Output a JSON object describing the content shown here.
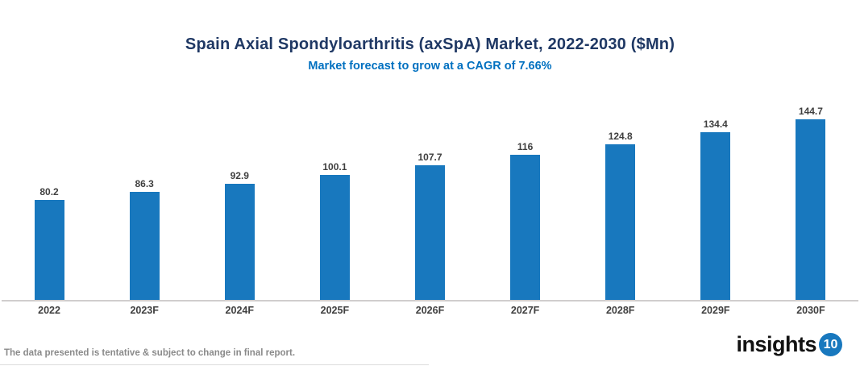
{
  "header": {
    "title": "Spain Axial Spondyloarthritis (axSpA) Market, 2022-2030 ($Mn)",
    "subtitle": "Market forecast to grow at a CAGR of 7.66%"
  },
  "chart_data": {
    "type": "bar",
    "title": "Spain Axial Spondyloarthritis (axSpA) Market, 2022-2030 ($Mn)",
    "subtitle": "Market forecast to grow at a CAGR of 7.66%",
    "categories": [
      "2022",
      "2023F",
      "2024F",
      "2025F",
      "2026F",
      "2027F",
      "2028F",
      "2029F",
      "2030F"
    ],
    "values": [
      80.2,
      86.3,
      92.9,
      100.1,
      107.7,
      116,
      124.8,
      134.4,
      144.7
    ],
    "xlabel": "",
    "ylabel": "",
    "ylim": [
      0,
      160
    ],
    "grid": false,
    "legend": false,
    "data_labels": true,
    "bar_color": "#1878BE"
  },
  "footer": {
    "disclaimer": "The data presented is tentative & subject to change in final report.",
    "logo_text": "insights",
    "logo_badge": "10"
  },
  "colors": {
    "title": "#1F3864",
    "subtitle": "#0070C0",
    "bar": "#1878BE",
    "value_label": "#3F3F3F",
    "category_label": "#3F3F3F",
    "axis_line": "#D0CECE",
    "disclaimer_text": "#8A8A8A",
    "logo_badge_bg": "#1878BE"
  }
}
